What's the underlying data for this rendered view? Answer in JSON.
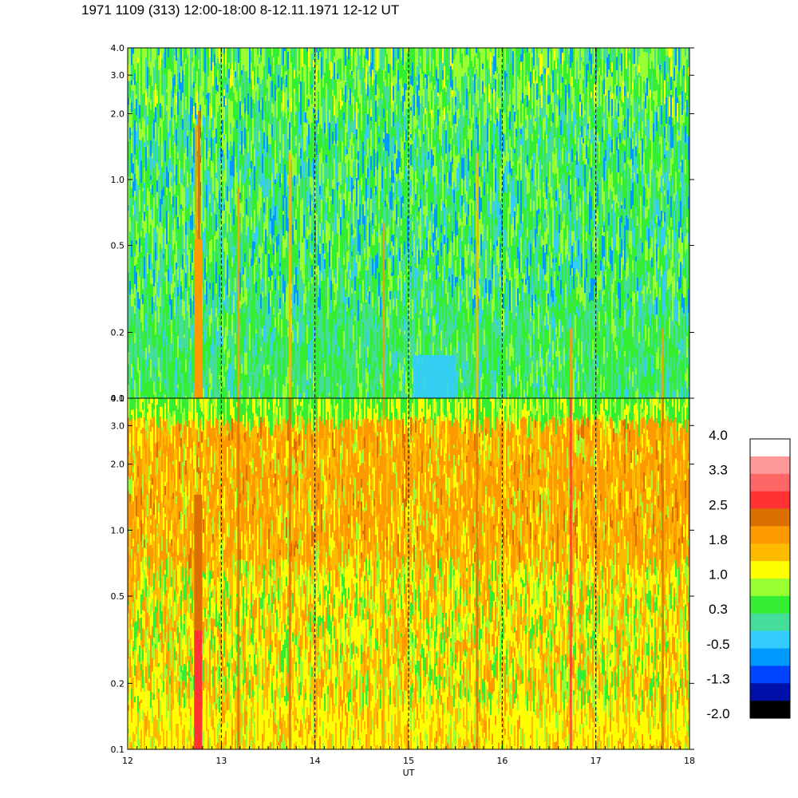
{
  "title": "1971 1109 (313) 12:00-18:00 8-12.11.1971  12-12 UT",
  "chart_data": {
    "type": "heatmap",
    "title": "1971 1109 (313) 12:00-18:00 8-12.11.1971  12-12 UT",
    "xlabel": "UT",
    "x_range": [
      12,
      18
    ],
    "x_ticks": [
      "12",
      "13",
      "14",
      "15",
      "16",
      "17",
      "18"
    ],
    "x_dashed_lines": [
      13,
      14,
      15,
      16,
      17
    ],
    "panels": [
      {
        "name": "top",
        "y_scale": "log",
        "y_range": [
          0.1,
          4.0
        ],
        "y_ticks": [
          "0.1",
          "0.2",
          "0.5",
          "1.0",
          "2.0",
          "3.0",
          "4.0"
        ],
        "dominant_levels": [
          0.3,
          -0.5,
          -1.3
        ]
      },
      {
        "name": "bottom",
        "y_scale": "log",
        "y_range": [
          0.1,
          4.0
        ],
        "y_ticks": [
          "0.1",
          "0.2",
          "0.5",
          "1.0",
          "2.0",
          "3.0",
          "4.0"
        ],
        "dominant_levels": [
          1.0,
          1.8,
          0.3
        ]
      }
    ],
    "colorbar": {
      "labels": [
        "4.0",
        "3.3",
        "2.5",
        "1.8",
        "1.0",
        "0.3",
        "-0.5",
        "-1.3",
        "-2.0"
      ],
      "colors_top_to_bottom": [
        "#ffffff",
        "#ff9999",
        "#ff6666",
        "#ff3333",
        "#d97000",
        "#ff9900",
        "#ffbb00",
        "#ffff00",
        "#99ff33",
        "#33ee33",
        "#44dd99",
        "#33ccff",
        "#0099ff",
        "#0044ff",
        "#0011aa",
        "#000000"
      ]
    }
  }
}
